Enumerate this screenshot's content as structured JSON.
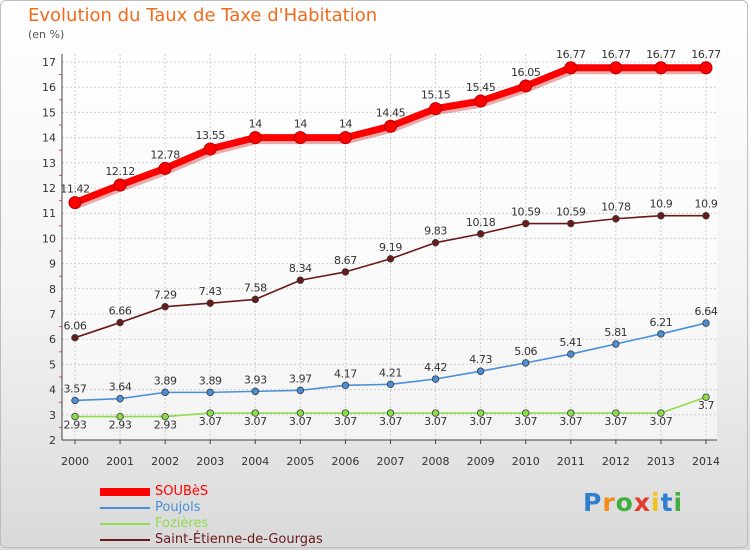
{
  "title": "Evolution du Taux de Taxe d'Habitation",
  "unit": "(en %)",
  "logo": "Proxiti",
  "chart_data": {
    "type": "line",
    "x": [
      2000,
      2001,
      2002,
      2003,
      2004,
      2005,
      2006,
      2007,
      2008,
      2009,
      2010,
      2011,
      2012,
      2013,
      2014
    ],
    "ylim": [
      2,
      17
    ],
    "y_ticks": [
      2,
      3,
      4,
      5,
      6,
      7,
      8,
      9,
      10,
      11,
      12,
      13,
      14,
      15,
      16,
      17
    ],
    "grid": true,
    "legend_position": "bottom-left",
    "series": [
      {
        "name": "SOUBèS",
        "color": "#ff0000",
        "emphasis": true,
        "values": [
          11.42,
          12.12,
          12.78,
          13.55,
          14,
          14,
          14,
          14.45,
          15.15,
          15.45,
          16.05,
          16.77,
          16.77,
          16.77,
          16.77
        ],
        "labels": [
          "11.42",
          "12.12",
          "12.78",
          "13.55",
          "14",
          "14",
          "14",
          "14.45",
          "15.15",
          "15.45",
          "16.05",
          "16.77",
          "16.77",
          "16.77",
          "16.77"
        ]
      },
      {
        "name": "Poujols",
        "color": "#4a90d9",
        "values": [
          3.57,
          3.64,
          3.89,
          3.89,
          3.93,
          3.97,
          4.17,
          4.21,
          4.42,
          4.73,
          5.06,
          5.41,
          5.81,
          6.21,
          6.64
        ],
        "labels": [
          "3.57",
          "3.64",
          "3.89",
          "3.89",
          "3.93",
          "3.97",
          "4.17",
          "4.21",
          "4.42",
          "4.73",
          "5.06",
          "5.41",
          "5.81",
          "6.21",
          "6.64"
        ]
      },
      {
        "name": "Fozières",
        "color": "#8ddc4c",
        "values": [
          2.93,
          2.93,
          2.93,
          3.07,
          3.07,
          3.07,
          3.07,
          3.07,
          3.07,
          3.07,
          3.07,
          3.07,
          3.07,
          3.07,
          3.7
        ],
        "labels": [
          "2.93",
          "2.93",
          "2.93",
          "3.07",
          "3.07",
          "3.07",
          "3.07",
          "3.07",
          "3.07",
          "3.07",
          "3.07",
          "3.07",
          "3.07",
          "3.07",
          "3.7"
        ]
      },
      {
        "name": "Saint-Étienne-de-Gourgas",
        "color": "#6b1a1a",
        "values": [
          6.06,
          6.66,
          7.29,
          7.43,
          7.58,
          8.34,
          8.67,
          9.19,
          9.83,
          10.18,
          10.59,
          10.59,
          10.78,
          10.9,
          10.9
        ],
        "labels": [
          "6.06",
          "6.66",
          "7.29",
          "7.43",
          "7.58",
          "8.34",
          "8.67",
          "9.19",
          "9.83",
          "10.18",
          "10.59",
          "10.59",
          "10.78",
          "10.9",
          "10.9"
        ]
      }
    ]
  }
}
